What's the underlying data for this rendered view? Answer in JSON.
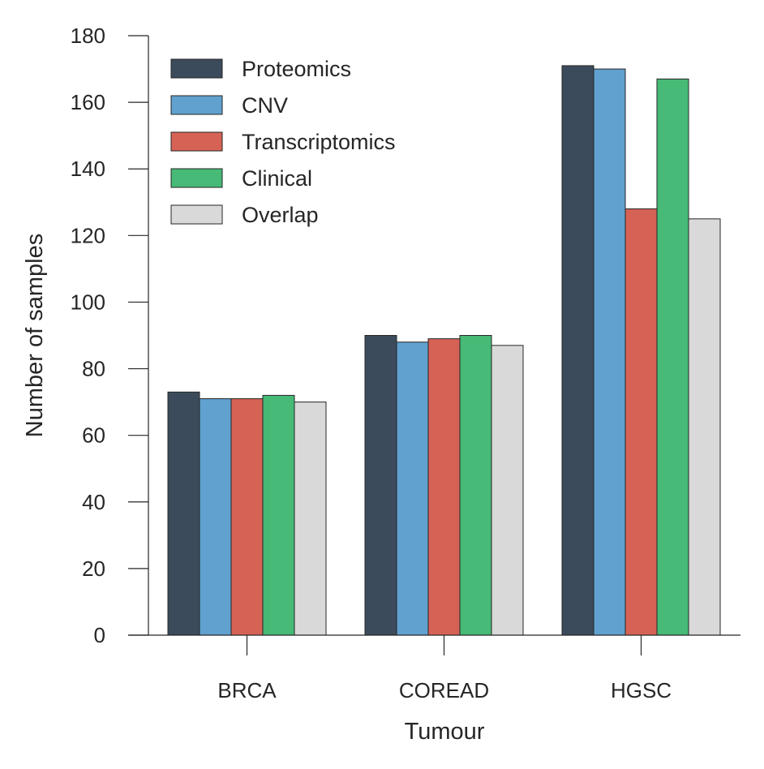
{
  "chart_data": {
    "type": "bar",
    "xlabel": "Tumour",
    "ylabel": "Number of samples",
    "categories": [
      "BRCA",
      "COREAD",
      "HGSC"
    ],
    "ylim": [
      0,
      180
    ],
    "yticks": [
      0,
      20,
      40,
      60,
      80,
      100,
      120,
      140,
      160,
      180
    ],
    "grid": false,
    "legend_position": "top-left",
    "series": [
      {
        "name": "Proteomics",
        "color": "#3b4b5c",
        "values": [
          73,
          90,
          171
        ]
      },
      {
        "name": "CNV",
        "color": "#60a1cf",
        "values": [
          71,
          88,
          170
        ]
      },
      {
        "name": "Transcriptomics",
        "color": "#d66256",
        "values": [
          71,
          89,
          128
        ]
      },
      {
        "name": "Clinical",
        "color": "#46ba76",
        "values": [
          72,
          90,
          167
        ]
      },
      {
        "name": "Overlap",
        "color": "#d9d9d9",
        "values": [
          70,
          87,
          125
        ]
      }
    ]
  }
}
